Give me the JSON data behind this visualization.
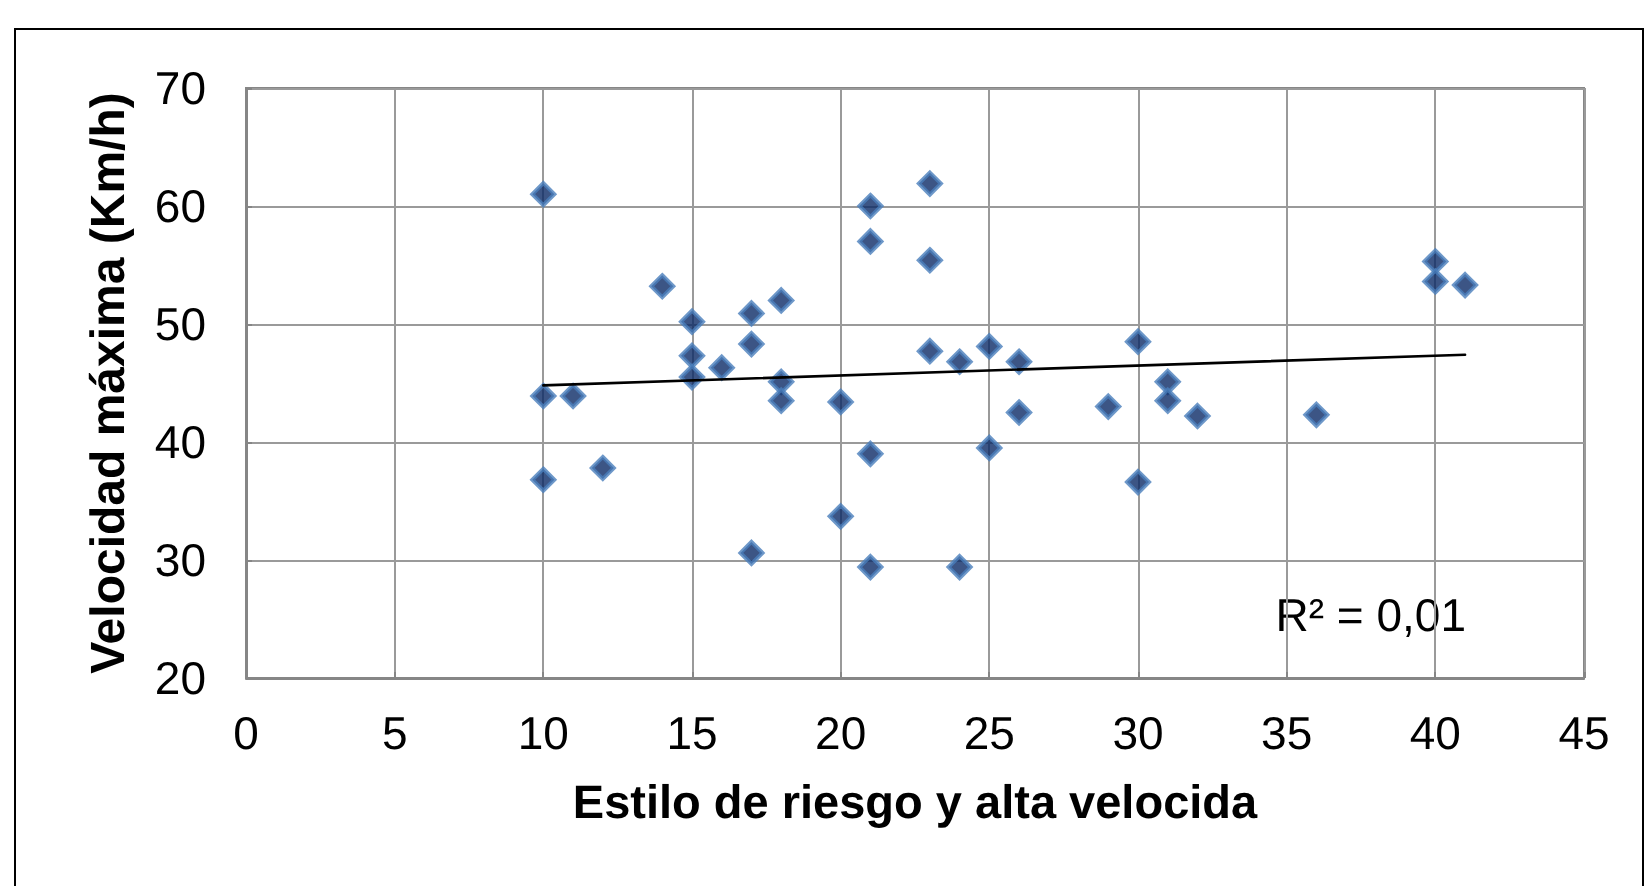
{
  "chart_data": {
    "type": "scatter",
    "xlabel": "Estilo de riesgo y alta velocida",
    "ylabel": "Velocidad máxima (Km/h)",
    "xlim": [
      0,
      45
    ],
    "ylim": [
      20,
      70
    ],
    "xticks": [
      0,
      5,
      10,
      15,
      20,
      25,
      30,
      35,
      40,
      45
    ],
    "yticks": [
      20,
      30,
      40,
      50,
      60,
      70
    ],
    "grid": true,
    "marker": "diamond",
    "series": [
      {
        "type": "scatter",
        "color": "#0b2a66",
        "x": [
          10,
          10,
          10,
          11,
          12,
          14,
          15,
          15,
          15,
          16,
          17,
          17,
          17,
          18,
          18,
          18,
          20,
          20,
          21,
          21,
          21,
          21,
          23,
          23,
          23,
          24,
          24,
          25,
          25,
          26,
          26,
          29,
          30,
          30,
          31,
          31,
          32,
          36,
          40,
          40,
          41
        ],
        "values": [
          61.0,
          43.9,
          36.8,
          43.9,
          37.8,
          53.2,
          50.2,
          47.3,
          45.5,
          46.3,
          50.9,
          48.3,
          30.6,
          52.0,
          45.1,
          43.5,
          43.4,
          33.7,
          60.0,
          57.0,
          39.0,
          29.4,
          61.9,
          55.4,
          47.7,
          46.8,
          29.4,
          48.1,
          39.5,
          46.8,
          42.5,
          43.0,
          48.5,
          36.6,
          45.1,
          43.5,
          42.2,
          42.3,
          55.3,
          53.6,
          53.3
        ]
      },
      {
        "type": "line",
        "color": "#000000",
        "marker": "none",
        "x": [
          10,
          41
        ],
        "values": [
          44.8,
          47.4
        ]
      }
    ],
    "annotations": [
      "R² = 0,01"
    ]
  }
}
